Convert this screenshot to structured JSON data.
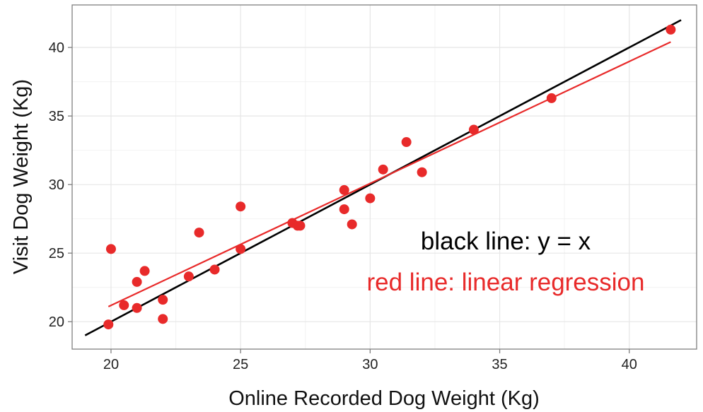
{
  "chart_data": {
    "type": "scatter",
    "xlabel": "Online Recorded Dog Weight (Kg)",
    "ylabel": "Visit Dog Weight (Kg)",
    "xlim": [
      18.5,
      42.6
    ],
    "ylim": [
      18.0,
      43.1
    ],
    "x_ticks": [
      20,
      25,
      30,
      35,
      40
    ],
    "y_ticks": [
      20,
      25,
      30,
      35,
      40
    ],
    "grid": true,
    "points_color": "#e82a2a",
    "points": [
      {
        "x": 19.9,
        "y": 19.8
      },
      {
        "x": 20.0,
        "y": 25.3
      },
      {
        "x": 20.5,
        "y": 21.2
      },
      {
        "x": 21.0,
        "y": 22.9
      },
      {
        "x": 21.0,
        "y": 21.0
      },
      {
        "x": 21.3,
        "y": 23.7
      },
      {
        "x": 22.0,
        "y": 21.6
      },
      {
        "x": 22.0,
        "y": 20.2
      },
      {
        "x": 23.0,
        "y": 23.3
      },
      {
        "x": 23.4,
        "y": 26.5
      },
      {
        "x": 24.0,
        "y": 23.8
      },
      {
        "x": 25.0,
        "y": 28.4
      },
      {
        "x": 25.0,
        "y": 25.3
      },
      {
        "x": 27.0,
        "y": 27.2
      },
      {
        "x": 27.2,
        "y": 27.0
      },
      {
        "x": 27.3,
        "y": 27.0
      },
      {
        "x": 29.0,
        "y": 29.6
      },
      {
        "x": 29.0,
        "y": 28.2
      },
      {
        "x": 29.3,
        "y": 27.1
      },
      {
        "x": 30.0,
        "y": 29.0
      },
      {
        "x": 30.5,
        "y": 31.1
      },
      {
        "x": 31.4,
        "y": 33.1
      },
      {
        "x": 32.0,
        "y": 30.9
      },
      {
        "x": 34.0,
        "y": 34.0
      },
      {
        "x": 37.0,
        "y": 36.3
      },
      {
        "x": 41.6,
        "y": 41.3
      }
    ],
    "lines": [
      {
        "label": "black line: y = x",
        "color": "#000000",
        "x": [
          19.0,
          42.0
        ],
        "y": [
          19.0,
          42.0
        ]
      },
      {
        "label": "red line: linear regression",
        "color": "#e82a2a",
        "x": [
          19.9,
          41.6
        ],
        "y": [
          21.1,
          40.4
        ]
      }
    ]
  }
}
